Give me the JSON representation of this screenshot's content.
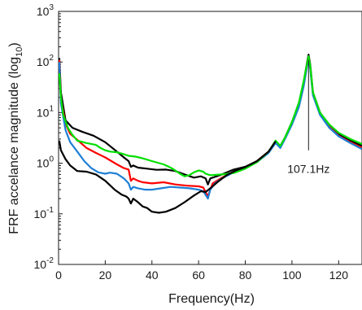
{
  "chart_data": {
    "type": "line",
    "title": "",
    "xlabel": "Frequency(Hz)",
    "ylabel_main": "FRF accelance magnitude (log",
    "ylabel_sub": "10",
    "ylabel_end": ")",
    "xlim": [
      0,
      130
    ],
    "ylim": [
      0.01,
      1000
    ],
    "yscale": "log",
    "grid": false,
    "x_ticks": [
      0,
      20,
      40,
      60,
      80,
      100,
      120
    ],
    "x_tick_labels": [
      "0",
      "20",
      "40",
      "60",
      "80",
      "100",
      "120"
    ],
    "y_ticks": [
      {
        "value": 1000,
        "base": "10",
        "exp": "3"
      },
      {
        "value": 100,
        "base": "10",
        "exp": "2"
      },
      {
        "value": 10,
        "base": "10",
        "exp": "1"
      },
      {
        "value": 1,
        "base": "10",
        "exp": "0"
      },
      {
        "value": 0.1,
        "base": "10",
        "exp": "-1"
      },
      {
        "value": 0.01,
        "base": "10",
        "exp": "-2"
      }
    ],
    "series": [
      {
        "color": "#000000",
        "points": [
          [
            0.3,
            120
          ],
          [
            1,
            25
          ],
          [
            3,
            7
          ],
          [
            6,
            5
          ],
          [
            10,
            4.2
          ],
          [
            15,
            3.5
          ],
          [
            20,
            2.6
          ],
          [
            25,
            1.7
          ],
          [
            28,
            1.3
          ],
          [
            30,
            1.1
          ],
          [
            31,
            0.85
          ],
          [
            32,
            0.9
          ],
          [
            34,
            0.82
          ],
          [
            38,
            0.78
          ],
          [
            42,
            0.74
          ],
          [
            46,
            0.75
          ],
          [
            50,
            0.7
          ],
          [
            54,
            0.6
          ],
          [
            58,
            0.52
          ],
          [
            61,
            0.55
          ],
          [
            63,
            0.5
          ],
          [
            64,
            0.38
          ],
          [
            65,
            0.5
          ],
          [
            70,
            0.6
          ],
          [
            75,
            0.75
          ],
          [
            80,
            0.85
          ],
          [
            85,
            1.1
          ],
          [
            90,
            1.7
          ],
          [
            93,
            2.7
          ],
          [
            95,
            2.2
          ],
          [
            97,
            3.2
          ],
          [
            100,
            6.5
          ],
          [
            103,
            15
          ],
          [
            105,
            40
          ],
          [
            106.5,
            100
          ],
          [
            107.1,
            140
          ],
          [
            107.8,
            90
          ],
          [
            109,
            25
          ],
          [
            112,
            10
          ],
          [
            116,
            5.5
          ],
          [
            120,
            3.8
          ],
          [
            125,
            2.8
          ],
          [
            130,
            2.2
          ]
        ]
      },
      {
        "color": "#ff0000",
        "points": [
          [
            0.3,
            110
          ],
          [
            1,
            18
          ],
          [
            3,
            6
          ],
          [
            5,
            3.8
          ],
          [
            8,
            2.9
          ],
          [
            12,
            2
          ],
          [
            16,
            1.6
          ],
          [
            20,
            1.3
          ],
          [
            25,
            0.95
          ],
          [
            28,
            0.8
          ],
          [
            30,
            0.75
          ],
          [
            31,
            0.45
          ],
          [
            32,
            0.5
          ],
          [
            34,
            0.45
          ],
          [
            36,
            0.42
          ],
          [
            40,
            0.4
          ],
          [
            45,
            0.42
          ],
          [
            50,
            0.38
          ],
          [
            55,
            0.36
          ],
          [
            60,
            0.35
          ],
          [
            62,
            0.33
          ],
          [
            64,
            0.22
          ],
          [
            65,
            0.3
          ],
          [
            66,
            0.4
          ],
          [
            70,
            0.52
          ],
          [
            75,
            0.68
          ],
          [
            80,
            0.82
          ],
          [
            85,
            1.1
          ],
          [
            90,
            1.7
          ],
          [
            93,
            2.6
          ],
          [
            95,
            2.1
          ],
          [
            97,
            3.1
          ],
          [
            100,
            6
          ],
          [
            103,
            14
          ],
          [
            105,
            35
          ],
          [
            106.5,
            90
          ],
          [
            107.1,
            120
          ],
          [
            107.8,
            80
          ],
          [
            109,
            24
          ],
          [
            112,
            9.5
          ],
          [
            116,
            5.2
          ],
          [
            120,
            3.5
          ],
          [
            125,
            2.6
          ],
          [
            130,
            2
          ]
        ]
      },
      {
        "color": "#1f7fd6",
        "points": [
          [
            0.3,
            100
          ],
          [
            1,
            15
          ],
          [
            3,
            4.5
          ],
          [
            5,
            2.6
          ],
          [
            8,
            1.7
          ],
          [
            11,
            1.1
          ],
          [
            14,
            0.8
          ],
          [
            17,
            0.66
          ],
          [
            20,
            0.62
          ],
          [
            22,
            0.65
          ],
          [
            25,
            0.62
          ],
          [
            28,
            0.5
          ],
          [
            30,
            0.4
          ],
          [
            31,
            0.3
          ],
          [
            32,
            0.34
          ],
          [
            34,
            0.32
          ],
          [
            37,
            0.3
          ],
          [
            40,
            0.3
          ],
          [
            44,
            0.32
          ],
          [
            48,
            0.34
          ],
          [
            52,
            0.33
          ],
          [
            56,
            0.32
          ],
          [
            60,
            0.3
          ],
          [
            62,
            0.28
          ],
          [
            64,
            0.2
          ],
          [
            65,
            0.3
          ],
          [
            67,
            0.4
          ],
          [
            70,
            0.5
          ],
          [
            75,
            0.66
          ],
          [
            80,
            0.8
          ],
          [
            85,
            1.05
          ],
          [
            90,
            1.6
          ],
          [
            93,
            2.5
          ],
          [
            95,
            2
          ],
          [
            97,
            3
          ],
          [
            100,
            5.8
          ],
          [
            103,
            13
          ],
          [
            105,
            33
          ],
          [
            106.5,
            85
          ],
          [
            107.1,
            110
          ],
          [
            107.8,
            75
          ],
          [
            109,
            22
          ],
          [
            112,
            9
          ],
          [
            116,
            5
          ],
          [
            120,
            3.4
          ],
          [
            125,
            2.5
          ],
          [
            130,
            1.9
          ]
        ]
      },
      {
        "color": "#00e000",
        "points": [
          [
            0.3,
            60
          ],
          [
            1,
            20
          ],
          [
            2,
            9
          ],
          [
            4,
            5
          ],
          [
            6,
            3.6
          ],
          [
            8,
            2.8
          ],
          [
            12,
            2.5
          ],
          [
            16,
            2.3
          ],
          [
            18,
            2
          ],
          [
            20,
            1.8
          ],
          [
            22,
            1.7
          ],
          [
            25,
            1.65
          ],
          [
            28,
            1.5
          ],
          [
            30,
            1.4
          ],
          [
            33,
            1.35
          ],
          [
            36,
            1.25
          ],
          [
            40,
            1.1
          ],
          [
            45,
            0.95
          ],
          [
            48,
            0.82
          ],
          [
            50,
            0.72
          ],
          [
            52,
            0.62
          ],
          [
            54,
            0.55
          ],
          [
            56,
            0.58
          ],
          [
            58,
            0.66
          ],
          [
            60,
            0.72
          ],
          [
            62,
            0.68
          ],
          [
            63,
            0.62
          ],
          [
            65,
            0.58
          ],
          [
            70,
            0.6
          ],
          [
            75,
            0.64
          ],
          [
            80,
            0.78
          ],
          [
            85,
            1.05
          ],
          [
            90,
            1.7
          ],
          [
            93,
            2.8
          ],
          [
            95,
            2.2
          ],
          [
            97,
            3.2
          ],
          [
            100,
            6.5
          ],
          [
            103,
            16
          ],
          [
            105,
            42
          ],
          [
            106.5,
            95
          ],
          [
            107.1,
            130
          ],
          [
            107.8,
            85
          ],
          [
            109,
            25
          ],
          [
            112,
            10
          ],
          [
            116,
            5.8
          ],
          [
            120,
            4
          ],
          [
            125,
            3
          ],
          [
            130,
            2.4
          ]
        ]
      },
      {
        "color": "#000000",
        "points": [
          [
            0.3,
            2.8
          ],
          [
            1,
            1.8
          ],
          [
            3,
            1.2
          ],
          [
            5,
            0.9
          ],
          [
            8,
            0.7
          ],
          [
            12,
            0.68
          ],
          [
            16,
            0.6
          ],
          [
            20,
            0.45
          ],
          [
            24,
            0.3
          ],
          [
            27,
            0.24
          ],
          [
            29,
            0.22
          ],
          [
            30,
            0.2
          ],
          [
            31,
            0.16
          ],
          [
            32,
            0.2
          ],
          [
            34,
            0.17
          ],
          [
            36,
            0.14
          ],
          [
            38,
            0.13
          ],
          [
            40,
            0.11
          ],
          [
            43,
            0.105
          ],
          [
            46,
            0.11
          ],
          [
            50,
            0.13
          ],
          [
            54,
            0.17
          ],
          [
            58,
            0.23
          ],
          [
            61,
            0.28
          ],
          [
            63,
            0.27
          ],
          [
            65,
            0.32
          ],
          [
            68,
            0.42
          ],
          [
            72,
            0.58
          ],
          [
            76,
            0.72
          ],
          [
            80,
            0.84
          ],
          [
            85,
            1.1
          ],
          [
            90,
            1.7
          ],
          [
            93,
            2.7
          ]
        ]
      }
    ],
    "annotation": {
      "text": "107.1Hz",
      "x": 107.1,
      "y_top": 110,
      "y_bottom": 1.8
    }
  }
}
